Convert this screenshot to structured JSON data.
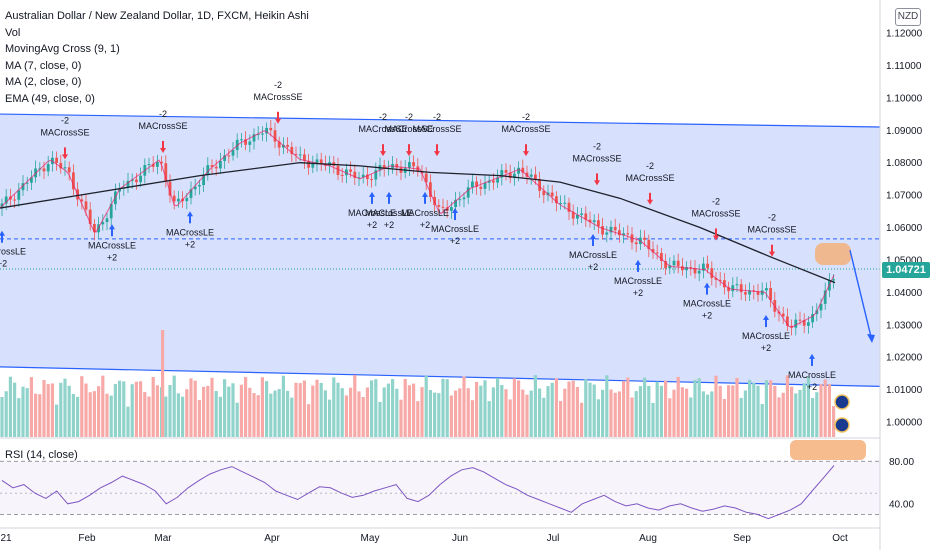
{
  "legend": {
    "title": "Australian Dollar / New Zealand Dollar, 1D, FXCM, Heikin Ashi",
    "lines": [
      "Vol",
      "MovingAvg Cross (9, 1)",
      "MA (7, close, 0)",
      "MA (2, close, 0)",
      "EMA (49, close, 0)"
    ]
  },
  "currency_button": "NZD",
  "rsi_label": "RSI (14, close)",
  "last_price": "1.04721",
  "price_axis": [
    "1.12000",
    "1.11000",
    "1.10000",
    "1.09000",
    "1.08000",
    "1.07000",
    "1.06000",
    "1.05000",
    "1.04000",
    "1.03000",
    "1.02000",
    "1.01000",
    "1.00000"
  ],
  "rsi_axis": [
    "80.00",
    "40.00"
  ],
  "time_axis": [
    "21",
    "Feb",
    "Mar",
    "Apr",
    "May",
    "Jun",
    "Jul",
    "Aug",
    "Sep",
    "Oct"
  ],
  "signal_labels": {
    "short_top": "-2",
    "short_text": "MACrossSE",
    "long_text": "MACrossLE",
    "long_bottom": "+2"
  },
  "colors": {
    "up": "#26a69a",
    "down": "#ef5350",
    "channel": "#2962ff",
    "channel_fill": "#c9d6fb",
    "ema": "#1e222d",
    "ma": "#e91e63",
    "rsi": "#7e57c2",
    "highlight": "#f5b07a",
    "signal_up": "#2962ff",
    "signal_down": "#f23645"
  },
  "chart_data": {
    "type": "candlestick",
    "symbol": "AUDNZD",
    "interval": "1D",
    "price_range": [
      1.0,
      1.12
    ],
    "anchors": [
      {
        "x": 0,
        "y": 1.066
      },
      {
        "x": 20,
        "y": 1.072
      },
      {
        "x": 50,
        "y": 1.081
      },
      {
        "x": 68,
        "y": 1.077
      },
      {
        "x": 95,
        "y": 1.058
      },
      {
        "x": 120,
        "y": 1.072
      },
      {
        "x": 160,
        "y": 1.081
      },
      {
        "x": 175,
        "y": 1.066
      },
      {
        "x": 210,
        "y": 1.078
      },
      {
        "x": 240,
        "y": 1.086
      },
      {
        "x": 265,
        "y": 1.09
      },
      {
        "x": 300,
        "y": 1.081
      },
      {
        "x": 330,
        "y": 1.079
      },
      {
        "x": 360,
        "y": 1.075
      },
      {
        "x": 390,
        "y": 1.079
      },
      {
        "x": 420,
        "y": 1.078
      },
      {
        "x": 440,
        "y": 1.064
      },
      {
        "x": 470,
        "y": 1.072
      },
      {
        "x": 520,
        "y": 1.078
      },
      {
        "x": 560,
        "y": 1.067
      },
      {
        "x": 600,
        "y": 1.06
      },
      {
        "x": 640,
        "y": 1.056
      },
      {
        "x": 670,
        "y": 1.048
      },
      {
        "x": 705,
        "y": 1.047
      },
      {
        "x": 730,
        "y": 1.041
      },
      {
        "x": 765,
        "y": 1.04
      },
      {
        "x": 790,
        "y": 1.029
      },
      {
        "x": 815,
        "y": 1.033
      },
      {
        "x": 835,
        "y": 1.046
      }
    ],
    "ema_line": [
      {
        "x": 0,
        "y": 1.066
      },
      {
        "x": 100,
        "y": 1.071
      },
      {
        "x": 200,
        "y": 1.076
      },
      {
        "x": 300,
        "y": 1.08
      },
      {
        "x": 360,
        "y": 1.079
      },
      {
        "x": 430,
        "y": 1.077
      },
      {
        "x": 500,
        "y": 1.076
      },
      {
        "x": 560,
        "y": 1.074
      },
      {
        "x": 620,
        "y": 1.069
      },
      {
        "x": 700,
        "y": 1.06
      },
      {
        "x": 770,
        "y": 1.051
      },
      {
        "x": 835,
        "y": 1.043
      }
    ],
    "channel": {
      "upper": [
        {
          "x": 0,
          "y": 1.095
        },
        {
          "x": 880,
          "y": 1.091
        }
      ],
      "lower": [
        {
          "x": 0,
          "y": 1.017
        },
        {
          "x": 880,
          "y": 1.011
        }
      ]
    },
    "dashed_level": 1.0565,
    "dotted_level": 1.04721,
    "projection": {
      "from": {
        "x": 850,
        "y": 1.053
      },
      "to": {
        "x": 872,
        "y": 1.025
      }
    },
    "short_signals": [
      {
        "x": 65,
        "y": 1.081
      },
      {
        "x": 163,
        "y": 1.083
      },
      {
        "x": 278,
        "y": 1.092
      },
      {
        "x": 383,
        "y": 1.082
      },
      {
        "x": 409,
        "y": 1.082
      },
      {
        "x": 437,
        "y": 1.082
      },
      {
        "x": 526,
        "y": 1.082
      },
      {
        "x": 597,
        "y": 1.073
      },
      {
        "x": 650,
        "y": 1.067
      },
      {
        "x": 716,
        "y": 1.056
      },
      {
        "x": 772,
        "y": 1.051
      }
    ],
    "long_signals": [
      {
        "x": 2,
        "y": 1.059
      },
      {
        "x": 112,
        "y": 1.061
      },
      {
        "x": 190,
        "y": 1.065
      },
      {
        "x": 372,
        "y": 1.071
      },
      {
        "x": 389,
        "y": 1.071
      },
      {
        "x": 425,
        "y": 1.071
      },
      {
        "x": 455,
        "y": 1.066
      },
      {
        "x": 593,
        "y": 1.058
      },
      {
        "x": 638,
        "y": 1.05
      },
      {
        "x": 707,
        "y": 1.043
      },
      {
        "x": 766,
        "y": 1.033
      },
      {
        "x": 812,
        "y": 1.021
      }
    ],
    "rsi": {
      "range": [
        20,
        100
      ],
      "overbought": 80,
      "oversold": 30,
      "points": [
        62,
        55,
        58,
        50,
        45,
        52,
        40,
        42,
        48,
        55,
        60,
        66,
        62,
        58,
        52,
        40,
        46,
        55,
        62,
        68,
        72,
        75,
        70,
        65,
        60,
        52,
        48,
        44,
        50,
        56,
        55,
        50,
        46,
        48,
        52,
        55,
        58,
        45,
        42,
        48,
        58,
        66,
        72,
        74,
        70,
        64,
        58,
        54,
        48,
        44,
        40,
        36,
        32,
        40,
        44,
        48,
        42,
        38,
        40,
        36,
        34,
        38,
        40,
        36,
        33,
        35,
        38,
        36,
        32,
        30,
        26,
        30,
        34,
        40,
        52,
        64,
        76
      ]
    }
  }
}
